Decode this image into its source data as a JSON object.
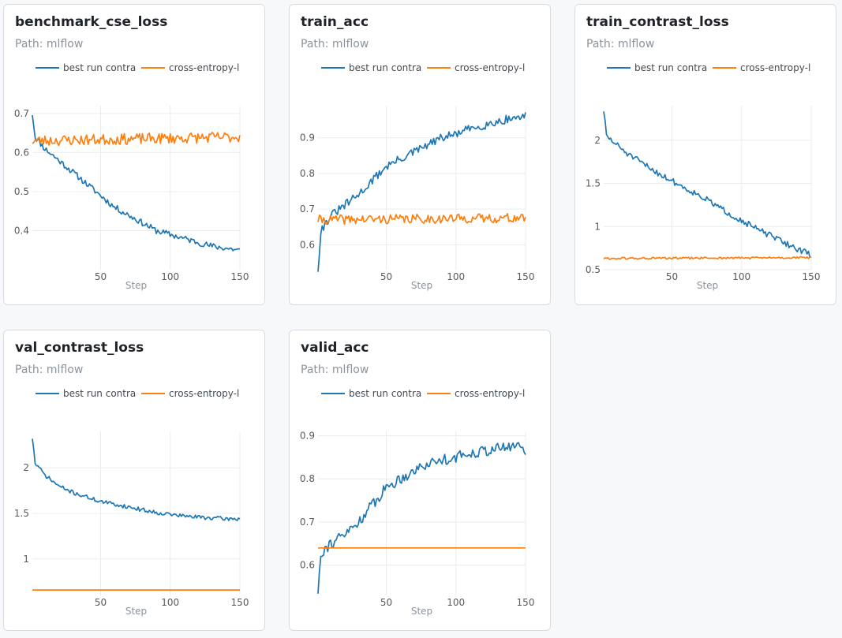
{
  "path_label": "Path: mlflow",
  "legend_labels": [
    "best run contra",
    "cross-entropy-l"
  ],
  "colors": {
    "series_1": "#1f77b4",
    "series_2": "#ff7f0e"
  },
  "chart_data": [
    {
      "type": "line",
      "title": "benchmark_cse_loss",
      "xlabel": "Step",
      "ylabel": "",
      "xlim": [
        1,
        150
      ],
      "ylim": [
        0.3,
        0.72
      ],
      "xticks": [
        50,
        100,
        150
      ],
      "yticks": [
        0.4,
        0.5,
        0.6,
        0.7
      ],
      "grid": true,
      "legend_position": "top",
      "series": [
        {
          "name": "best run contra",
          "color": "#1f77b4",
          "anchors": [
            [
              1,
              0.7
            ],
            [
              3,
              0.64
            ],
            [
              10,
              0.61
            ],
            [
              20,
              0.58
            ],
            [
              30,
              0.55
            ],
            [
              40,
              0.52
            ],
            [
              50,
              0.49
            ],
            [
              60,
              0.46
            ],
            [
              70,
              0.44
            ],
            [
              80,
              0.42
            ],
            [
              90,
              0.4
            ],
            [
              100,
              0.39
            ],
            [
              110,
              0.38
            ],
            [
              120,
              0.37
            ],
            [
              130,
              0.36
            ],
            [
              140,
              0.355
            ],
            [
              150,
              0.35
            ]
          ],
          "noise": 0.008,
          "seed": 11
        },
        {
          "name": "cross-entropy-l",
          "color": "#ff7f0e",
          "anchors": [
            [
              1,
              0.63
            ],
            [
              150,
              0.64
            ]
          ],
          "noise": 0.014,
          "seed": 23
        }
      ]
    },
    {
      "type": "line",
      "title": "train_acc",
      "xlabel": "Step",
      "ylabel": "",
      "xlim": [
        1,
        150
      ],
      "ylim": [
        0.53,
        0.99
      ],
      "xticks": [
        50,
        100,
        150
      ],
      "yticks": [
        0.6,
        0.7,
        0.8,
        0.9
      ],
      "grid": true,
      "legend_position": "top",
      "series": [
        {
          "name": "best run contra",
          "color": "#1f77b4",
          "anchors": [
            [
              1,
              0.53
            ],
            [
              3,
              0.64
            ],
            [
              10,
              0.68
            ],
            [
              20,
              0.71
            ],
            [
              30,
              0.74
            ],
            [
              40,
              0.78
            ],
            [
              50,
              0.82
            ],
            [
              60,
              0.84
            ],
            [
              70,
              0.86
            ],
            [
              80,
              0.88
            ],
            [
              90,
              0.9
            ],
            [
              100,
              0.91
            ],
            [
              110,
              0.925
            ],
            [
              120,
              0.935
            ],
            [
              130,
              0.945
            ],
            [
              140,
              0.955
            ],
            [
              150,
              0.96
            ]
          ],
          "noise": 0.012,
          "seed": 31
        },
        {
          "name": "cross-entropy-l",
          "color": "#ff7f0e",
          "anchors": [
            [
              1,
              0.67
            ],
            [
              150,
              0.675
            ]
          ],
          "noise": 0.013,
          "seed": 41
        }
      ]
    },
    {
      "type": "line",
      "title": "train_contrast_loss",
      "xlabel": "Step",
      "ylabel": "",
      "xlim": [
        1,
        150
      ],
      "ylim": [
        0.5,
        2.4
      ],
      "xticks": [
        50,
        100,
        150
      ],
      "yticks": [
        0.5,
        1,
        1.5,
        2
      ],
      "grid": true,
      "legend_position": "top",
      "series": [
        {
          "name": "best run contra",
          "color": "#1f77b4",
          "anchors": [
            [
              1,
              2.35
            ],
            [
              3,
              2.05
            ],
            [
              10,
              1.95
            ],
            [
              20,
              1.82
            ],
            [
              30,
              1.72
            ],
            [
              40,
              1.62
            ],
            [
              50,
              1.53
            ],
            [
              60,
              1.44
            ],
            [
              70,
              1.36
            ],
            [
              80,
              1.26
            ],
            [
              90,
              1.16
            ],
            [
              100,
              1.07
            ],
            [
              110,
              0.98
            ],
            [
              120,
              0.9
            ],
            [
              130,
              0.82
            ],
            [
              140,
              0.74
            ],
            [
              150,
              0.67
            ]
          ],
          "noise": 0.035,
          "seed": 51
        },
        {
          "name": "cross-entropy-l",
          "color": "#ff7f0e",
          "anchors": [
            [
              1,
              0.63
            ],
            [
              150,
              0.64
            ]
          ],
          "noise": 0.012,
          "seed": 61
        }
      ]
    },
    {
      "type": "line",
      "title": "val_contrast_loss",
      "xlabel": "Step",
      "ylabel": "",
      "xlim": [
        1,
        150
      ],
      "ylim": [
        0.6,
        2.4
      ],
      "xticks": [
        50,
        100,
        150
      ],
      "yticks": [
        1,
        1.5,
        2
      ],
      "grid": true,
      "legend_position": "top",
      "series": [
        {
          "name": "best run contra",
          "color": "#1f77b4",
          "anchors": [
            [
              1,
              2.33
            ],
            [
              3,
              2.05
            ],
            [
              10,
              1.92
            ],
            [
              20,
              1.8
            ],
            [
              30,
              1.73
            ],
            [
              40,
              1.68
            ],
            [
              50,
              1.63
            ],
            [
              60,
              1.6
            ],
            [
              70,
              1.57
            ],
            [
              80,
              1.54
            ],
            [
              90,
              1.51
            ],
            [
              100,
              1.49
            ],
            [
              110,
              1.47
            ],
            [
              120,
              1.46
            ],
            [
              130,
              1.45
            ],
            [
              140,
              1.44
            ],
            [
              150,
              1.44
            ]
          ],
          "noise": 0.022,
          "seed": 71
        },
        {
          "name": "cross-entropy-l",
          "color": "#ff7f0e",
          "anchors": [
            [
              1,
              0.66
            ],
            [
              150,
              0.66
            ]
          ],
          "noise": 0.0,
          "seed": 81
        }
      ]
    },
    {
      "type": "line",
      "title": "valid_acc",
      "xlabel": "Step",
      "ylabel": "",
      "xlim": [
        1,
        150
      ],
      "ylim": [
        0.53,
        0.91
      ],
      "xticks": [
        50,
        100,
        150
      ],
      "yticks": [
        0.6,
        0.7,
        0.8,
        0.9
      ],
      "grid": true,
      "legend_position": "top",
      "series": [
        {
          "name": "best run contra",
          "color": "#1f77b4",
          "anchors": [
            [
              1,
              0.54
            ],
            [
              3,
              0.63
            ],
            [
              10,
              0.65
            ],
            [
              20,
              0.67
            ],
            [
              30,
              0.7
            ],
            [
              40,
              0.74
            ],
            [
              50,
              0.78
            ],
            [
              60,
              0.8
            ],
            [
              70,
              0.82
            ],
            [
              80,
              0.835
            ],
            [
              90,
              0.845
            ],
            [
              100,
              0.85
            ],
            [
              110,
              0.86
            ],
            [
              120,
              0.865
            ],
            [
              130,
              0.87
            ],
            [
              140,
              0.875
            ],
            [
              148,
              0.88
            ],
            [
              150,
              0.85
            ]
          ],
          "noise": 0.013,
          "seed": 91
        },
        {
          "name": "cross-entropy-l",
          "color": "#ff7f0e",
          "anchors": [
            [
              1,
              0.64
            ],
            [
              150,
              0.64
            ]
          ],
          "noise": 0.0,
          "seed": 101
        }
      ]
    }
  ]
}
